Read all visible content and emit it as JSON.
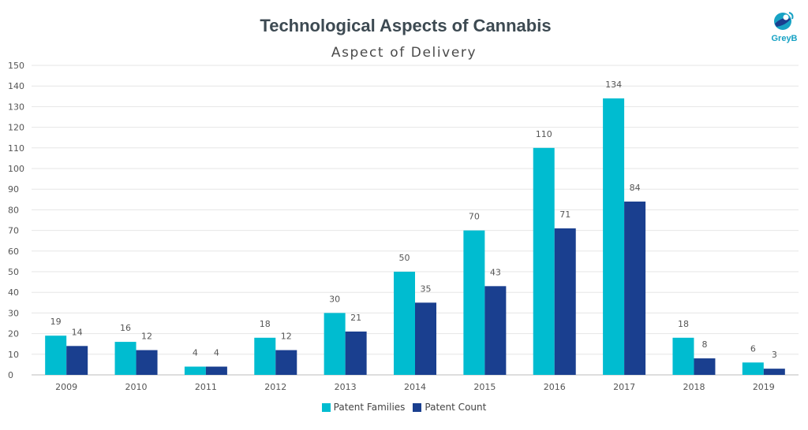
{
  "title": "Technological Aspects of Cannabis",
  "subtitle": "Aspect of Delivery",
  "logo": {
    "text": "GreyB",
    "icon": "greyb-logo-icon"
  },
  "colors": {
    "families": "#00bcd0",
    "count": "#1a3f8f",
    "grid": "#e6e6e6",
    "axis": "#bdbdbd"
  },
  "chart_data": {
    "type": "bar",
    "categories": [
      "2009",
      "2010",
      "2011",
      "2012",
      "2013",
      "2014",
      "2015",
      "2016",
      "2017",
      "2018",
      "2019"
    ],
    "series": [
      {
        "name": "Patent Families",
        "values": [
          19,
          16,
          4,
          18,
          30,
          50,
          70,
          110,
          134,
          18,
          6
        ]
      },
      {
        "name": "Patent Count",
        "values": [
          14,
          12,
          4,
          12,
          21,
          35,
          43,
          71,
          84,
          8,
          3
        ]
      }
    ],
    "ylim": [
      0,
      150
    ],
    "yticks": [
      0,
      10,
      20,
      30,
      40,
      50,
      60,
      70,
      80,
      90,
      100,
      110,
      120,
      130,
      140,
      150
    ],
    "grid": true,
    "legend": "bottom-center"
  }
}
